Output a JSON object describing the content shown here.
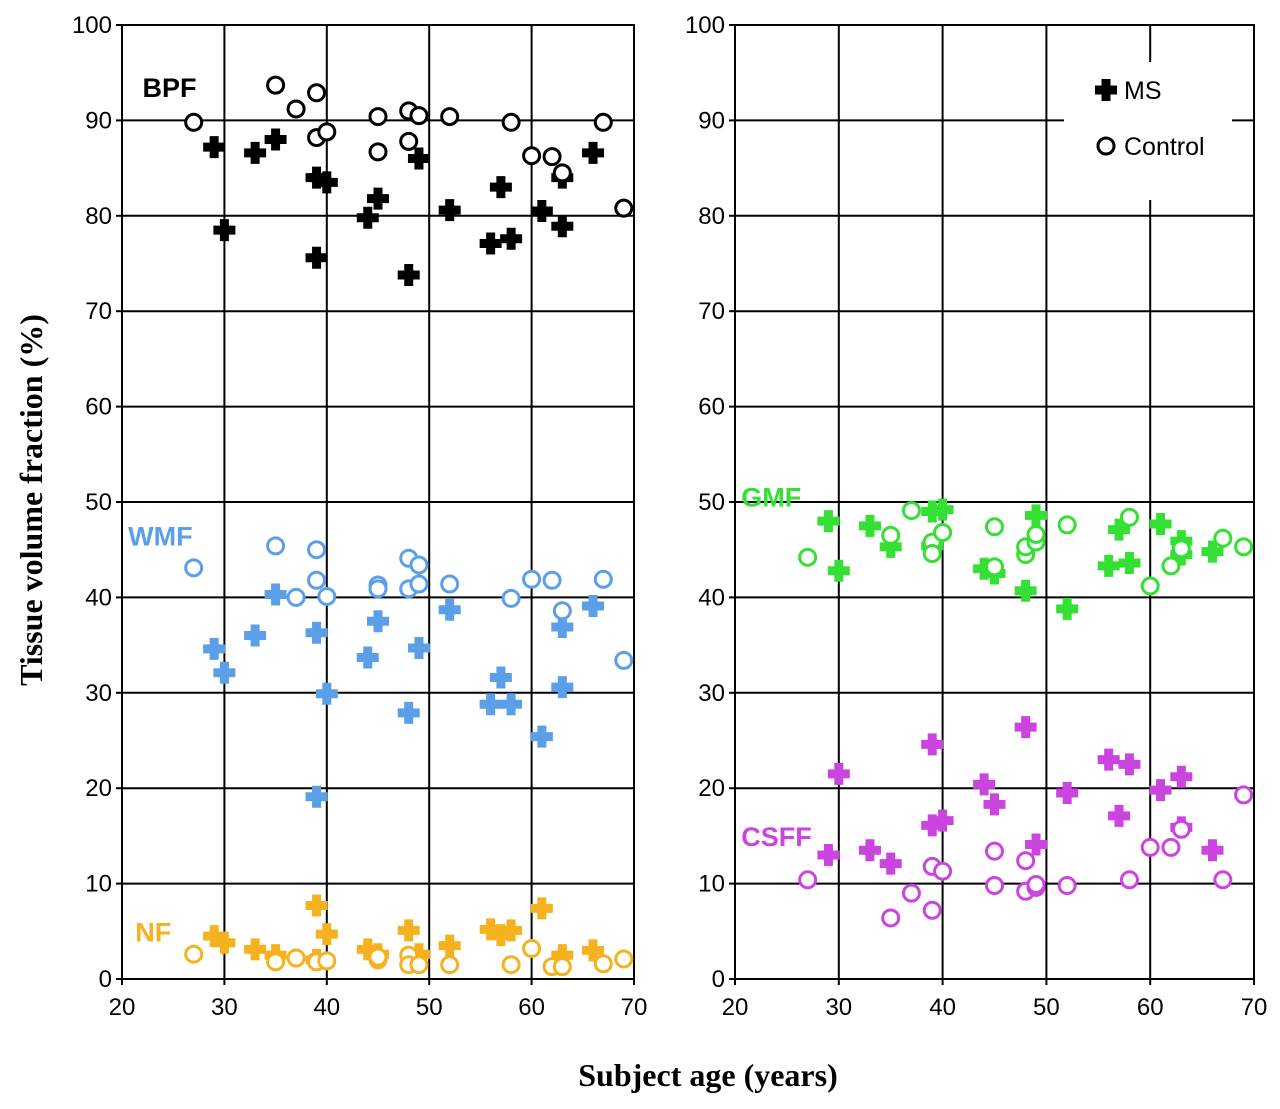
{
  "figure": {
    "ylabel": "Tissue volume fraction (%)",
    "xlabel": "Subject age (years)"
  },
  "legend": {
    "position": "top-right of right panel",
    "items": [
      {
        "label": "MS",
        "marker": "cross-filled"
      },
      {
        "label": "Control",
        "marker": "circle-open"
      }
    ]
  },
  "colors": {
    "BPF": "#000000",
    "WMF": "#5a9fe8",
    "NF": "#f5b21e",
    "GMF": "#33e033",
    "CSFF": "#cc44e0",
    "grid": "#000000"
  },
  "chart_data": [
    {
      "type": "scatter",
      "panel": "left",
      "xlim": [
        20,
        70
      ],
      "ylim": [
        0,
        100
      ],
      "xticks": [
        20,
        30,
        40,
        50,
        60,
        70
      ],
      "yticks": [
        0,
        10,
        20,
        30,
        40,
        50,
        60,
        70,
        80,
        90,
        100
      ],
      "grid": true,
      "series": [
        {
          "name": "BPF",
          "group": "MS",
          "color": "#000000",
          "label_at": [
            22,
            93.5
          ],
          "points": [
            [
              29,
              87.2
            ],
            [
              30,
              78.5
            ],
            [
              33,
              86.6
            ],
            [
              35,
              88.0
            ],
            [
              39,
              84.0
            ],
            [
              39,
              75.6
            ],
            [
              40,
              83.5
            ],
            [
              44,
              79.8
            ],
            [
              45,
              81.8
            ],
            [
              48,
              73.8
            ],
            [
              49,
              86.0
            ],
            [
              52,
              80.6
            ],
            [
              56,
              77.1
            ],
            [
              57,
              83.0
            ],
            [
              58,
              77.6
            ],
            [
              61,
              80.5
            ],
            [
              63,
              78.9
            ],
            [
              63,
              84.0
            ],
            [
              66,
              86.6
            ]
          ]
        },
        {
          "name": "BPF",
          "group": "Control",
          "color": "#000000",
          "points": [
            [
              27,
              89.8
            ],
            [
              35,
              93.7
            ],
            [
              37,
              91.2
            ],
            [
              39,
              92.9
            ],
            [
              39,
              88.2
            ],
            [
              40,
              88.8
            ],
            [
              45,
              86.7
            ],
            [
              45,
              90.4
            ],
            [
              48,
              91.0
            ],
            [
              48,
              87.8
            ],
            [
              49,
              90.5
            ],
            [
              52,
              90.4
            ],
            [
              58,
              89.8
            ],
            [
              60,
              86.3
            ],
            [
              62,
              86.2
            ],
            [
              63,
              84.5
            ],
            [
              67,
              89.8
            ],
            [
              69,
              80.8
            ]
          ]
        },
        {
          "name": "WMF",
          "group": "MS",
          "color": "#5a9fe8",
          "label_at": [
            20.6,
            46.5
          ],
          "points": [
            [
              29,
              34.6
            ],
            [
              30,
              32.1
            ],
            [
              33,
              36.0
            ],
            [
              35,
              40.3
            ],
            [
              39,
              36.3
            ],
            [
              39,
              19.1
            ],
            [
              40,
              29.9
            ],
            [
              44,
              33.7
            ],
            [
              45,
              37.5
            ],
            [
              48,
              27.9
            ],
            [
              49,
              34.7
            ],
            [
              52,
              38.7
            ],
            [
              56,
              28.8
            ],
            [
              57,
              31.6
            ],
            [
              58,
              28.8
            ],
            [
              61,
              25.4
            ],
            [
              63,
              30.6
            ],
            [
              63,
              36.9
            ],
            [
              66,
              39.1
            ]
          ]
        },
        {
          "name": "WMF",
          "group": "Control",
          "color": "#5a9fe8",
          "points": [
            [
              27,
              43.1
            ],
            [
              35,
              45.4
            ],
            [
              37,
              40.0
            ],
            [
              39,
              45.0
            ],
            [
              39,
              41.8
            ],
            [
              40,
              40.1
            ],
            [
              45,
              41.3
            ],
            [
              45,
              40.9
            ],
            [
              48,
              44.1
            ],
            [
              48,
              40.9
            ],
            [
              49,
              43.4
            ],
            [
              49,
              41.4
            ],
            [
              52,
              41.4
            ],
            [
              58,
              39.9
            ],
            [
              60,
              41.9
            ],
            [
              62,
              41.8
            ],
            [
              63,
              38.6
            ],
            [
              67,
              41.9
            ],
            [
              69,
              33.4
            ]
          ]
        },
        {
          "name": "NF",
          "group": "MS",
          "color": "#f5b21e",
          "label_at": [
            21.3,
            5.0
          ],
          "points": [
            [
              29,
              4.5
            ],
            [
              30,
              3.8
            ],
            [
              33,
              3.1
            ],
            [
              35,
              2.5
            ],
            [
              39,
              7.7
            ],
            [
              39,
              2.0
            ],
            [
              40,
              4.7
            ],
            [
              44,
              3.1
            ],
            [
              45,
              2.6
            ],
            [
              48,
              5.1
            ],
            [
              49,
              2.6
            ],
            [
              52,
              3.5
            ],
            [
              56,
              5.2
            ],
            [
              57,
              4.6
            ],
            [
              58,
              5.1
            ],
            [
              61,
              7.4
            ],
            [
              63,
              2.5
            ],
            [
              66,
              3.0
            ]
          ]
        },
        {
          "name": "NF",
          "group": "Control",
          "color": "#f5b21e",
          "points": [
            [
              27,
              2.6
            ],
            [
              35,
              1.8
            ],
            [
              37,
              2.2
            ],
            [
              39,
              1.9
            ],
            [
              39,
              1.8
            ],
            [
              40,
              1.9
            ],
            [
              45,
              2.0
            ],
            [
              45,
              2.3
            ],
            [
              48,
              2.5
            ],
            [
              48,
              1.5
            ],
            [
              49,
              1.5
            ],
            [
              52,
              1.5
            ],
            [
              58,
              1.5
            ],
            [
              60,
              3.2
            ],
            [
              62,
              1.3
            ],
            [
              63,
              1.3
            ],
            [
              67,
              1.6
            ],
            [
              69,
              2.1
            ]
          ]
        }
      ]
    },
    {
      "type": "scatter",
      "panel": "right",
      "xlim": [
        20,
        70
      ],
      "ylim": [
        0,
        100
      ],
      "xticks": [
        20,
        30,
        40,
        50,
        60,
        70
      ],
      "yticks": [
        0,
        10,
        20,
        30,
        40,
        50,
        60,
        70,
        80,
        90,
        100
      ],
      "grid": true,
      "series": [
        {
          "name": "GMF",
          "group": "MS",
          "color": "#33e033",
          "label_at": [
            20.6,
            50.6
          ],
          "points": [
            [
              29,
              48.0
            ],
            [
              30,
              42.8
            ],
            [
              33,
              47.5
            ],
            [
              35,
              45.3
            ],
            [
              39,
              49.0
            ],
            [
              39,
              45.4
            ],
            [
              40,
              49.2
            ],
            [
              44,
              43.0
            ],
            [
              45,
              42.5
            ],
            [
              48,
              40.7
            ],
            [
              49,
              48.6
            ],
            [
              52,
              38.8
            ],
            [
              56,
              43.3
            ],
            [
              57,
              47.1
            ],
            [
              58,
              43.6
            ],
            [
              61,
              47.7
            ],
            [
              63,
              44.5
            ],
            [
              63,
              45.9
            ],
            [
              66,
              44.8
            ]
          ]
        },
        {
          "name": "GMF",
          "group": "Control",
          "color": "#33e033",
          "points": [
            [
              27,
              44.2
            ],
            [
              35,
              46.5
            ],
            [
              37,
              49.1
            ],
            [
              39,
              45.8
            ],
            [
              39,
              44.6
            ],
            [
              40,
              46.8
            ],
            [
              45,
              47.4
            ],
            [
              45,
              43.2
            ],
            [
              48,
              44.5
            ],
            [
              48,
              45.3
            ],
            [
              49,
              45.8
            ],
            [
              49,
              46.6
            ],
            [
              52,
              47.6
            ],
            [
              58,
              48.4
            ],
            [
              60,
              41.2
            ],
            [
              62,
              43.3
            ],
            [
              63,
              45.1
            ],
            [
              67,
              46.2
            ],
            [
              69,
              45.3
            ]
          ]
        },
        {
          "name": "CSFF",
          "group": "MS",
          "color": "#cc44e0",
          "label_at": [
            20.6,
            15.0
          ],
          "points": [
            [
              29,
              13.0
            ],
            [
              30,
              21.5
            ],
            [
              33,
              13.5
            ],
            [
              35,
              12.1
            ],
            [
              39,
              24.6
            ],
            [
              39,
              16.1
            ],
            [
              40,
              16.6
            ],
            [
              44,
              20.4
            ],
            [
              45,
              18.3
            ],
            [
              48,
              26.4
            ],
            [
              49,
              14.1
            ],
            [
              52,
              19.5
            ],
            [
              56,
              23.0
            ],
            [
              57,
              17.1
            ],
            [
              58,
              22.5
            ],
            [
              61,
              19.8
            ],
            [
              63,
              21.2
            ],
            [
              63,
              15.9
            ],
            [
              66,
              13.5
            ]
          ]
        },
        {
          "name": "CSFF",
          "group": "Control",
          "color": "#cc44e0",
          "points": [
            [
              27,
              10.4
            ],
            [
              35,
              6.4
            ],
            [
              37,
              9.0
            ],
            [
              39,
              11.8
            ],
            [
              39,
              7.2
            ],
            [
              40,
              11.3
            ],
            [
              45,
              13.4
            ],
            [
              45,
              9.8
            ],
            [
              48,
              12.4
            ],
            [
              48,
              9.2
            ],
            [
              49,
              9.6
            ],
            [
              49,
              9.9
            ],
            [
              52,
              9.8
            ],
            [
              58,
              10.4
            ],
            [
              60,
              13.8
            ],
            [
              62,
              13.8
            ],
            [
              63,
              15.7
            ],
            [
              67,
              10.4
            ],
            [
              69,
              19.3
            ]
          ]
        }
      ]
    }
  ]
}
